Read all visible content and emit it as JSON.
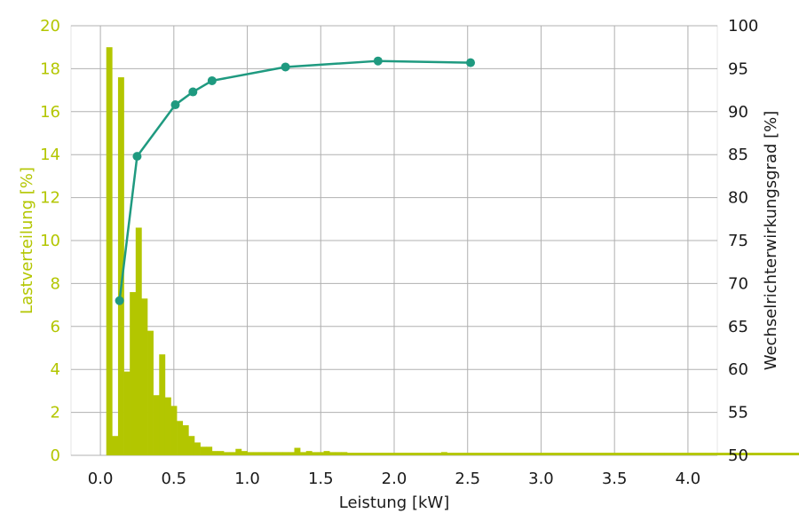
{
  "chart_data": {
    "type": "bar+line",
    "title": "",
    "xlabel": "Leistung [kW]",
    "ylabel_left": "Lastverteilung [%]",
    "ylabel_right": "Wechselrichterwirkungsgrad [%]",
    "xlim": [
      -0.2,
      4.2
    ],
    "ylim_left": [
      0,
      20
    ],
    "ylim_right": [
      50,
      100
    ],
    "xticks": [
      "0.0",
      "0.5",
      "1.0",
      "1.5",
      "2.0",
      "2.5",
      "3.0",
      "3.5",
      "4.0"
    ],
    "yticks_left": [
      "0",
      "2",
      "4",
      "6",
      "8",
      "10",
      "12",
      "14",
      "16",
      "18",
      "20"
    ],
    "yticks_right": [
      "50",
      "55",
      "60",
      "65",
      "70",
      "75",
      "80",
      "85",
      "90",
      "95",
      "100"
    ],
    "grid": true,
    "colors": {
      "bars": "#b3c600",
      "line": "#1f9a80",
      "left_axis": "#b3c600",
      "grid": "#b0b0b0"
    },
    "histogram": {
      "name": "Lastverteilung",
      "bin_width": 0.04,
      "bin_start": 0.04,
      "values": [
        19.0,
        0.9,
        17.6,
        3.9,
        7.6,
        10.6,
        7.3,
        5.8,
        2.8,
        4.7,
        2.7,
        2.3,
        1.6,
        1.4,
        0.9,
        0.6,
        0.4,
        0.4,
        0.2,
        0.2,
        0.15,
        0.15,
        0.3,
        0.2,
        0.15,
        0.15,
        0.15,
        0.15,
        0.15,
        0.15,
        0.15,
        0.15,
        0.35,
        0.15,
        0.2,
        0.15,
        0.15,
        0.2,
        0.15,
        0.15,
        0.15,
        0.12,
        0.12,
        0.12,
        0.12,
        0.12,
        0.12,
        0.12,
        0.12,
        0.12,
        0.12,
        0.12,
        0.12,
        0.12,
        0.12,
        0.12,
        0.12,
        0.15,
        0.12,
        0.12,
        0.12,
        0.12,
        0.12,
        0.12,
        0.12,
        0.12,
        0.12,
        0.12,
        0.12,
        0.12,
        0.12,
        0.12,
        0.12,
        0.12,
        0.12,
        0.12,
        0.12,
        0.12,
        0.12,
        0.12,
        0.12,
        0.12,
        0.12,
        0.12,
        0.12,
        0.12,
        0.12,
        0.12,
        0.12,
        0.12,
        0.12,
        0.12,
        0.12,
        0.12,
        0.12,
        0.12,
        0.12,
        0.12,
        0.12,
        0.12,
        0.12,
        0.12,
        0.12,
        0.12,
        0.12,
        0.12,
        0.12,
        0.12,
        0.12,
        0.12,
        0.12,
        0.12,
        0.12,
        0.12,
        0.12,
        0.12,
        0.12,
        0.12,
        0.12,
        0.12,
        0.12,
        0.12,
        0.12,
        0.12,
        0.12,
        0.12,
        0.12,
        0.12,
        0.12,
        0.12,
        0.12,
        0.12,
        0.12,
        0.12,
        0.12,
        0.12,
        0.12,
        0.12,
        0.12,
        0.12,
        0.12
      ]
    },
    "efficiency": {
      "name": "Wechselrichterwirkungsgrad",
      "x": [
        0.13,
        0.25,
        0.51,
        0.63,
        0.76,
        1.26,
        1.89,
        2.52
      ],
      "y": [
        68.0,
        84.8,
        90.8,
        92.3,
        93.6,
        95.2,
        95.9,
        95.7
      ]
    }
  }
}
